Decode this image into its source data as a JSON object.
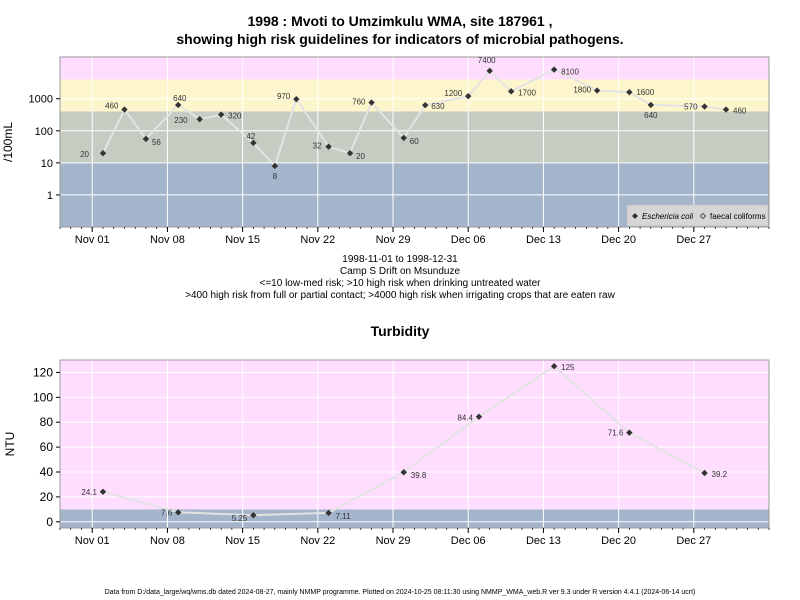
{
  "title": {
    "line1": "1998 : Mvoti to Umzimkulu WMA, site 187961 ,",
    "line2": "showing high risk guidelines for indicators of microbial pathogens."
  },
  "caption": {
    "line1": "1998-11-01 to 1998-12-31",
    "line2": "Camp S Drift on Msunduze",
    "line3": "<=10 low-med risk; >10 high risk when drinking untreated water",
    "line4": ">400 high risk from full or partial contact; >4000 high risk when irrigating crops that are eaten raw"
  },
  "footer": "Data from D:/data_large/wq/wms.db dated 2024-08-27, mainly NMMP programme. Plotted on 2024-10-25 08:11:30 using NMMP_WMA_web.R ver 9.3 under R version 4.4.1 (2024-06-14 ucrt)",
  "colors": {
    "band_low": "#a3b4cb",
    "band_mid": "#c5ccc2",
    "band_high": "#fdf6cc",
    "band_top": "#ffddff",
    "line": "#e3e3e3",
    "marker": "#333333",
    "grid": "#ffffff",
    "frame": "#999999"
  },
  "chart_data": [
    {
      "type": "line",
      "ylabel": "/100mL",
      "log_scale": true,
      "ylim": [
        0.1,
        20000
      ],
      "yticks": [
        1,
        10,
        100,
        1000
      ],
      "ytick_labels": [
        "1",
        "10",
        "100",
        "1000"
      ],
      "xlim": [
        "1998-10-29",
        "1999-01-03"
      ],
      "xticks": [
        "1998-11-01",
        "1998-11-08",
        "1998-11-15",
        "1998-11-22",
        "1998-11-29",
        "1998-12-06",
        "1998-12-13",
        "1998-12-20",
        "1998-12-27"
      ],
      "xtick_labels": [
        "Nov 01",
        "Nov 08",
        "Nov 15",
        "Nov 22",
        "Nov 29",
        "Dec 06",
        "Dec 13",
        "Dec 20",
        "Dec 27"
      ],
      "risk_bands": [
        {
          "from": 0.1,
          "to": 10,
          "color": "#a3b4cb"
        },
        {
          "from": 10,
          "to": 400,
          "color": "#c5ccc2"
        },
        {
          "from": 400,
          "to": 4000,
          "color": "#fdf6cc"
        },
        {
          "from": 4000,
          "to": 20000,
          "color": "#ffddff"
        }
      ],
      "grid": true,
      "legend_position": "bottom-right",
      "legend": [
        "Eschericia coli",
        "faecal coliforms"
      ],
      "series": [
        {
          "name": "Eschericia coli",
          "x": [
            "1998-11-02",
            "1998-11-04",
            "1998-11-06",
            "1998-11-09",
            "1998-11-11",
            "1998-11-13",
            "1998-11-16",
            "1998-11-18",
            "1998-11-20",
            "1998-11-23",
            "1998-11-25",
            "1998-11-27",
            "1998-11-30",
            "1998-12-02",
            "1998-12-06",
            "1998-12-08",
            "1998-12-10",
            "1998-12-14",
            "1998-12-18",
            "1998-12-21",
            "1998-12-23",
            "1998-12-28",
            "1998-12-30"
          ],
          "values": [
            20,
            460,
            56,
            640,
            230,
            320,
            42,
            8,
            970,
            32,
            20,
            760,
            60,
            630,
            1200,
            7400,
            1700,
            8100,
            1800,
            1600,
            640,
            570,
            460
          ],
          "labels": [
            "20",
            "460",
            "56",
            "640",
            "230",
            "320",
            "42",
            "8",
            "970",
            "32",
            "20",
            "760",
            "60",
            "630",
            "1200",
            "7400",
            "1700",
            "8100",
            "1800",
            "1600",
            "640",
            "570",
            "460"
          ]
        }
      ]
    },
    {
      "type": "line",
      "title": "Turbidity",
      "ylabel": "NTU",
      "ylim": [
        -5,
        130
      ],
      "yticks": [
        0,
        20,
        40,
        60,
        80,
        100,
        120
      ],
      "ytick_labels": [
        "0",
        "20",
        "40",
        "60",
        "80",
        "100",
        "120"
      ],
      "xlim": [
        "1998-10-29",
        "1999-01-03"
      ],
      "xticks": [
        "1998-11-01",
        "1998-11-08",
        "1998-11-15",
        "1998-11-22",
        "1998-11-29",
        "1998-12-06",
        "1998-12-13",
        "1998-12-20",
        "1998-12-27"
      ],
      "xtick_labels": [
        "Nov 01",
        "Nov 08",
        "Nov 15",
        "Nov 22",
        "Nov 29",
        "Dec 06",
        "Dec 13",
        "Dec 20",
        "Dec 27"
      ],
      "risk_bands": [
        {
          "from": -5,
          "to": 10,
          "color": "#a3b4cb"
        },
        {
          "from": 10,
          "to": 130,
          "color": "#ffddff"
        }
      ],
      "grid": true,
      "series": [
        {
          "x": [
            "1998-11-02",
            "1998-11-09",
            "1998-11-16",
            "1998-11-23",
            "1998-11-30",
            "1998-12-07",
            "1998-12-14",
            "1998-12-21",
            "1998-12-28"
          ],
          "values": [
            24.1,
            7.6,
            5.25,
            7.11,
            39.8,
            84.4,
            125,
            71.6,
            39.2
          ],
          "labels": [
            "24.1",
            "7.6",
            "5.25",
            "7.11",
            "39.8",
            "84.4",
            "125",
            "71.6",
            "39.2"
          ]
        }
      ]
    }
  ]
}
